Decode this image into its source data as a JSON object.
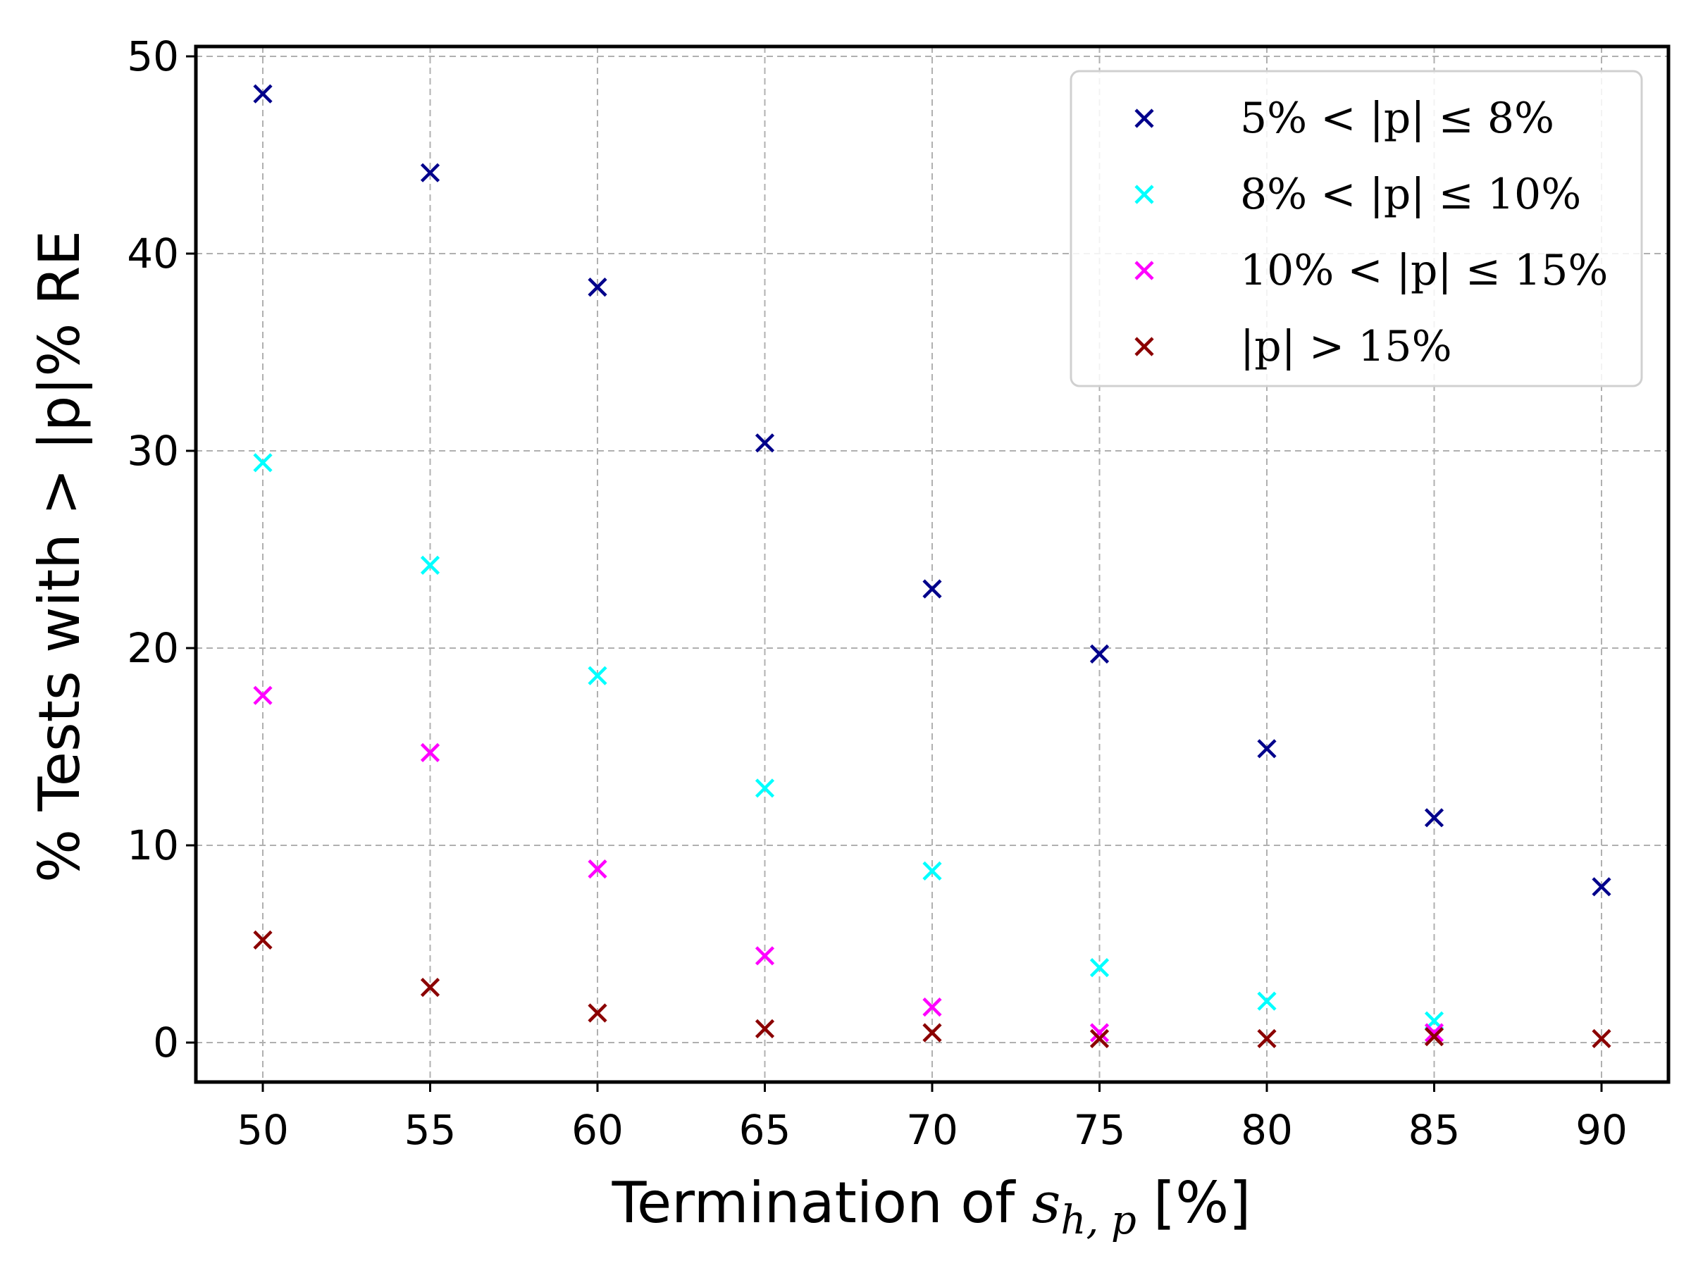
{
  "chart_data": {
    "type": "scatter",
    "xlabel": "Termination of",
    "xlabel_symbol": "s",
    "xlabel_subscript": "h, p",
    "xlabel_unit": "[%]",
    "ylabel": "% Tests with > |p|% RE",
    "xlim": [
      48,
      92
    ],
    "ylim": [
      -2,
      50.5
    ],
    "xticks": [
      50,
      55,
      60,
      65,
      70,
      75,
      80,
      85,
      90
    ],
    "yticks": [
      0,
      10,
      20,
      30,
      40,
      50
    ],
    "grid": true,
    "legend_position": "top-right",
    "marker": "x",
    "series": [
      {
        "name": "5% < |p| ≤ 8%",
        "color": "#00008b",
        "x": [
          50,
          55,
          60,
          65,
          70,
          75,
          80,
          85,
          90
        ],
        "y": [
          48.1,
          44.1,
          38.3,
          30.4,
          23.0,
          19.7,
          14.9,
          11.4,
          7.9
        ]
      },
      {
        "name": "8% < |p| ≤ 10%",
        "color": "#00ffff",
        "x": [
          50,
          55,
          60,
          65,
          70,
          75,
          80,
          85
        ],
        "y": [
          29.4,
          24.2,
          18.6,
          12.9,
          8.7,
          3.8,
          2.1,
          1.1
        ]
      },
      {
        "name": "10% < |p| ≤ 15%",
        "color": "#ff00ff",
        "x": [
          50,
          55,
          60,
          65,
          70,
          75,
          85
        ],
        "y": [
          17.6,
          14.7,
          8.8,
          4.4,
          1.8,
          0.5,
          0.5
        ]
      },
      {
        "name": "|p| > 15%",
        "color": "#8b0000",
        "x": [
          50,
          55,
          60,
          65,
          70,
          75,
          80,
          85,
          90
        ],
        "y": [
          5.2,
          2.8,
          1.5,
          0.7,
          0.5,
          0.2,
          0.2,
          0.3,
          0.2
        ]
      }
    ]
  }
}
